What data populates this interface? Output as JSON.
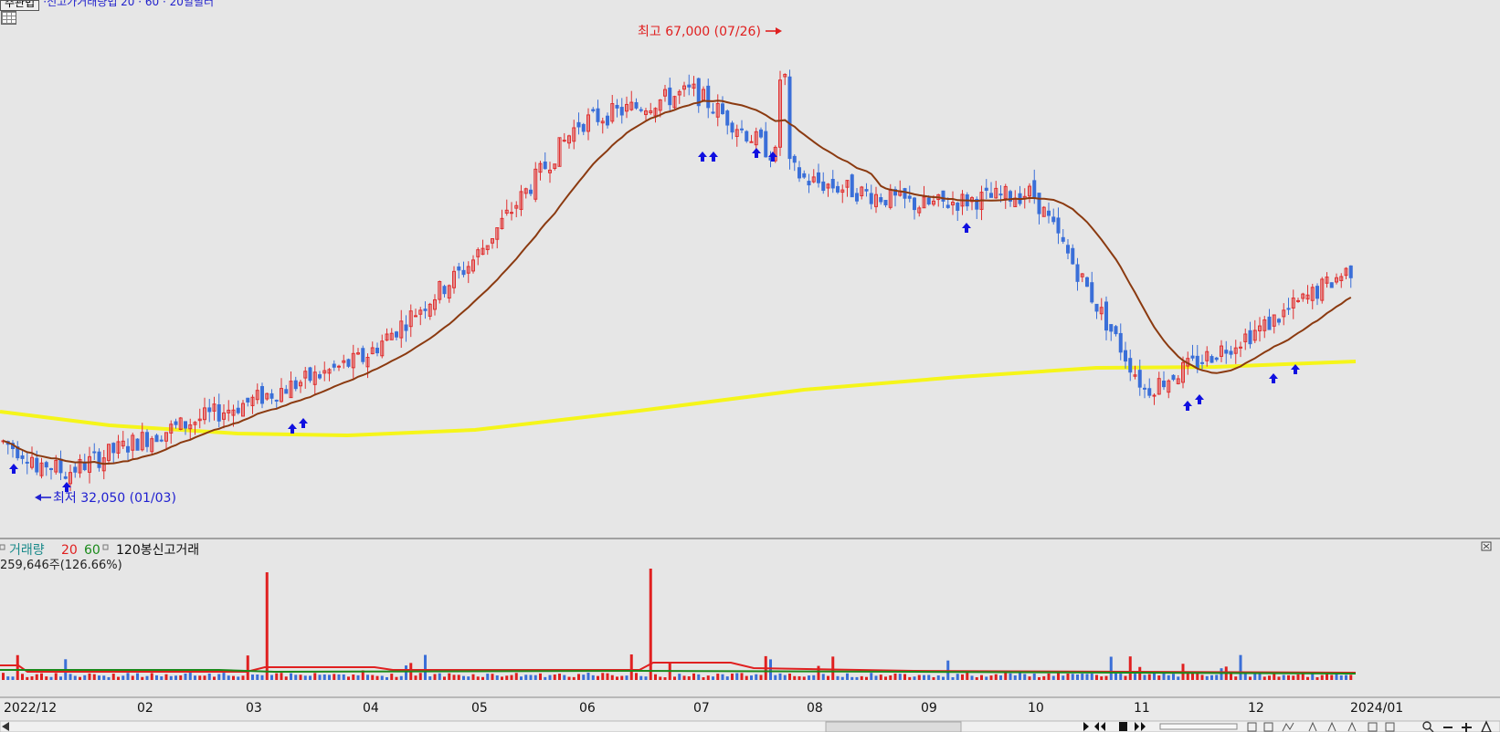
{
  "top_label": {
    "button": "주관법",
    "indicator_text": "·신고가거래량법 20 · 60 · 20일필터"
  },
  "price_panel": {
    "high_annotation": "최고 67,000 (07/26)",
    "low_annotation": "최저 32,050 (01/03)",
    "colors": {
      "up_candle": "#e03030",
      "down_candle": "#3a6fd8",
      "ma_short": "#8b3a10",
      "ma_long": "#f5f51a",
      "signal_arrow": "#1010e0",
      "annotation_high": "#e02020",
      "annotation_low": "#2020d0"
    }
  },
  "volume_panel": {
    "legend": {
      "label": "거래량",
      "ma1": "20",
      "ma2": "60",
      "extra": "120봉신고거래"
    },
    "current_value": "259,646주(126.66%)",
    "colors": {
      "up_bar": "#e02020",
      "down_bar": "#3a6fd8",
      "ma1": "#e02020",
      "ma2": "#1a8a1a"
    }
  },
  "x_axis": {
    "labels": [
      "2022/12",
      "02",
      "03",
      "04",
      "05",
      "06",
      "07",
      "08",
      "09",
      "10",
      "11",
      "12",
      "2024/01"
    ]
  },
  "chart_data": {
    "type": "candlestick",
    "x_range": [
      "2022-12",
      "2024-01"
    ],
    "price_range_estimate": [
      30000,
      68000
    ],
    "highest": {
      "value": 67000,
      "date": "07/26"
    },
    "lowest": {
      "value": 32050,
      "date": "01/03"
    },
    "price_path": [
      {
        "x": "2022-12",
        "y": 35500
      },
      {
        "x": "2023-01",
        "y": 33000
      },
      {
        "x": "2023-02",
        "y": 35500
      },
      {
        "x": "2023-03",
        "y": 38500
      },
      {
        "x": "2023-04",
        "y": 42000
      },
      {
        "x": "2023-05",
        "y": 49500
      },
      {
        "x": "2023-06",
        "y": 60500
      },
      {
        "x": "2023-07",
        "y": 63000
      },
      {
        "x": "2023-08",
        "y": 56000
      },
      {
        "x": "2023-09",
        "y": 54000
      },
      {
        "x": "2023-10",
        "y": 55000
      },
      {
        "x": "2023-11",
        "y": 39500
      },
      {
        "x": "2023-12",
        "y": 44500
      },
      {
        "x": "2024-01",
        "y": 49000
      }
    ],
    "series": [
      {
        "name": "20",
        "color": "#8b3a10"
      },
      {
        "name": "60",
        "color": "#f5f51a"
      }
    ],
    "volume_spikes": [
      "2023-03",
      "2023-06"
    ]
  }
}
